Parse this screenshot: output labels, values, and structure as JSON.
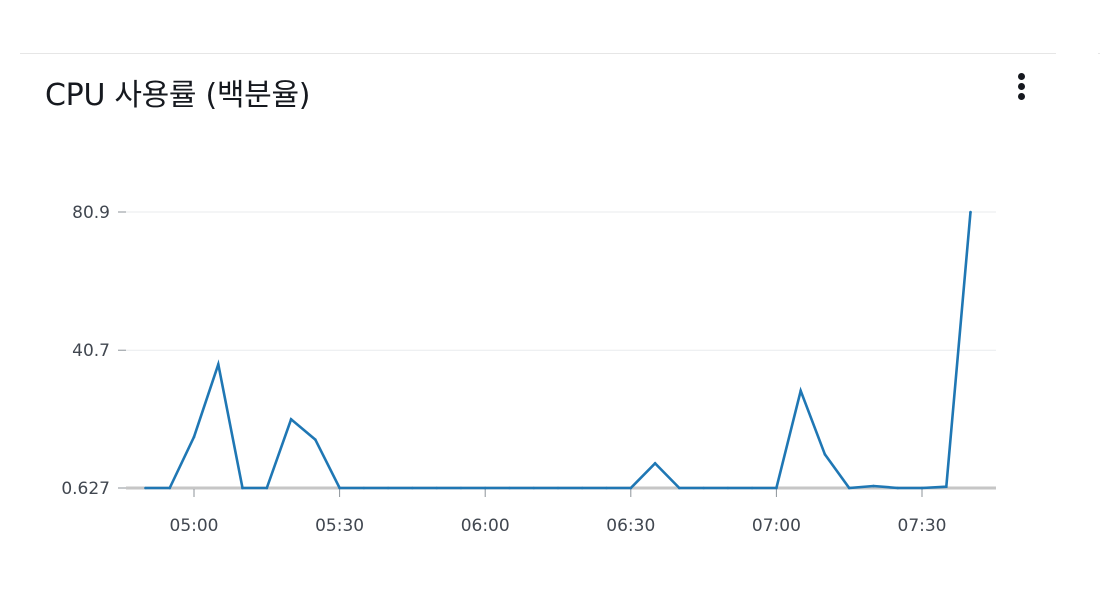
{
  "widget": {
    "title": "CPU 사용률 (백분율)",
    "menu_icon": "more-vertical-icon"
  },
  "colors": {
    "series": "#1f77b4",
    "gridline": "#e9ebed",
    "baseline": "#c6c6c6",
    "axis_text": "#414750"
  },
  "chart_data": {
    "type": "line",
    "title": "CPU 사용률 (백분율)",
    "xlabel": "",
    "ylabel": "",
    "x_tick_labels": [
      "05:00",
      "05:30",
      "06:00",
      "06:30",
      "07:00",
      "07:30"
    ],
    "y_tick_labels": [
      "80.9",
      "40.7",
      "0.627"
    ],
    "y_ticks": [
      80.9,
      40.7,
      0.627
    ],
    "ylim": [
      0.627,
      80.9
    ],
    "xlim": [
      "04:48",
      "07:40"
    ],
    "grid": true,
    "legend": "none",
    "series": [
      {
        "x": [
          "04:50",
          "04:55",
          "05:00",
          "05:05",
          "05:10",
          "05:15",
          "05:20",
          "05:25",
          "05:30",
          "05:35",
          "05:40",
          "05:45",
          "05:50",
          "05:55",
          "06:00",
          "06:05",
          "06:10",
          "06:15",
          "06:20",
          "06:25",
          "06:30",
          "06:35",
          "06:40",
          "06:45",
          "06:50",
          "06:55",
          "07:00",
          "07:05",
          "07:10",
          "07:15",
          "07:20",
          "07:25",
          "07:30",
          "07:35",
          "07:40"
        ],
        "values": [
          0.627,
          0.627,
          15.5,
          36.6,
          0.627,
          0.627,
          20.6,
          14.7,
          0.627,
          0.627,
          0.627,
          0.627,
          0.627,
          0.627,
          0.627,
          0.627,
          0.627,
          0.627,
          0.627,
          0.627,
          0.627,
          7.8,
          0.627,
          0.627,
          0.627,
          0.627,
          0.627,
          28.9,
          10.4,
          0.627,
          1.2,
          0.627,
          0.627,
          1.0,
          80.9
        ]
      }
    ]
  }
}
